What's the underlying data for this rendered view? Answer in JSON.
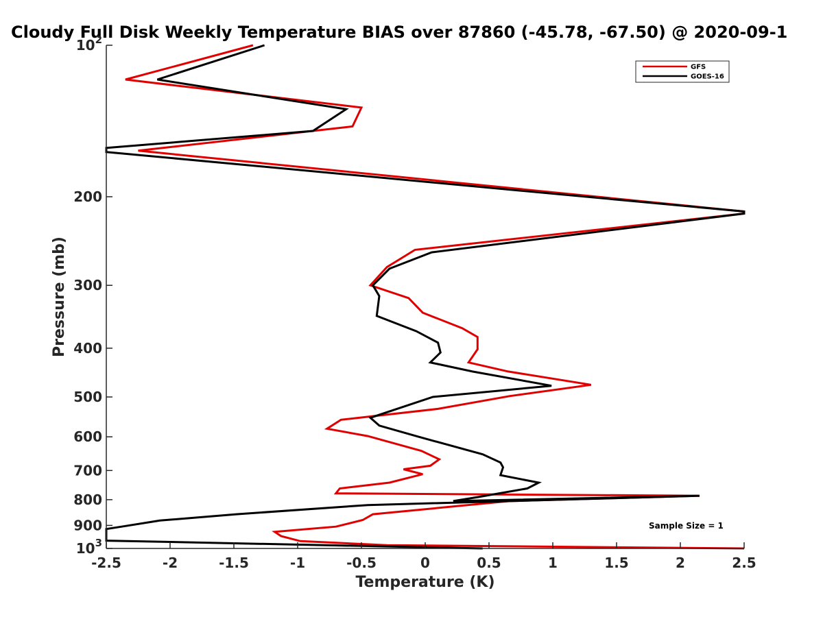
{
  "chart_data": {
    "type": "line",
    "title": "Cloudy Full Disk Weekly Temperature BIAS over 87860 (-45.78, -67.50) @ 2020-09-1",
    "xlabel": "Temperature (K)",
    "ylabel": "Pressure (mb)",
    "xlim": [
      -2.5,
      2.5
    ],
    "ylim": [
      1000,
      100
    ],
    "yscale": "log",
    "y_reversed": true,
    "x_ticks": [
      "-2.5",
      "-2",
      "-1.5",
      "-1",
      "-0.5",
      "0",
      "0.5",
      "1",
      "1.5",
      "2",
      "2.5"
    ],
    "y_ticks": [
      {
        "value": 100,
        "base": "10",
        "exp": "2"
      },
      {
        "value": 200,
        "label": "200"
      },
      {
        "value": 300,
        "label": "300"
      },
      {
        "value": 400,
        "label": "400"
      },
      {
        "value": 500,
        "label": "500"
      },
      {
        "value": 600,
        "label": "600"
      },
      {
        "value": 700,
        "label": "700"
      },
      {
        "value": 800,
        "label": "800"
      },
      {
        "value": 900,
        "label": "900"
      },
      {
        "value": 1000,
        "base": "10",
        "exp": "3"
      }
    ],
    "legend_position": "top-right",
    "grid": false,
    "annotation": "Sample Size = 1",
    "series": [
      {
        "name": "GFS",
        "color": "#e00000",
        "points": [
          [
            -1.35,
            100
          ],
          [
            -2.35,
            117
          ],
          [
            -0.5,
            133
          ],
          [
            -0.57,
            145
          ],
          [
            -2.25,
            162
          ],
          [
            2.5,
            214
          ],
          [
            2.5,
            216
          ],
          [
            -0.08,
            255
          ],
          [
            -0.3,
            276
          ],
          [
            -0.43,
            300
          ],
          [
            -0.13,
            318
          ],
          [
            -0.02,
            340
          ],
          [
            0.29,
            365
          ],
          [
            0.41,
            380
          ],
          [
            0.41,
            402
          ],
          [
            0.34,
            427
          ],
          [
            0.65,
            445
          ],
          [
            1.3,
            473
          ],
          [
            0.66,
            498
          ],
          [
            0.1,
            528
          ],
          [
            -0.66,
            555
          ],
          [
            -0.77,
            578
          ],
          [
            -0.45,
            598
          ],
          [
            -0.03,
            640
          ],
          [
            0.11,
            665
          ],
          [
            0.04,
            685
          ],
          [
            -0.17,
            696
          ],
          [
            -0.02,
            712
          ],
          [
            -0.28,
            740
          ],
          [
            -0.67,
            760
          ],
          [
            -0.7,
            777
          ],
          [
            2.15,
            786
          ],
          [
            0.66,
            805
          ],
          [
            -0.41,
            855
          ],
          [
            -0.49,
            878
          ],
          [
            -0.7,
            905
          ],
          [
            -1.18,
            927
          ],
          [
            -1.13,
            945
          ],
          [
            -0.98,
            967
          ],
          [
            -0.3,
            985
          ],
          [
            2.5,
            1000
          ]
        ]
      },
      {
        "name": "GOES-16",
        "color": "#000000",
        "points": [
          [
            -1.26,
            100
          ],
          [
            -2.1,
            117
          ],
          [
            -0.62,
            134
          ],
          [
            -0.88,
            148
          ],
          [
            -2.5,
            160
          ],
          [
            -2.5,
            163
          ],
          [
            2.5,
            214
          ],
          [
            2.5,
            216
          ],
          [
            0.05,
            258
          ],
          [
            -0.28,
            278
          ],
          [
            -0.41,
            300
          ],
          [
            -0.36,
            315
          ],
          [
            -0.38,
            345
          ],
          [
            -0.07,
            370
          ],
          [
            0.1,
            390
          ],
          [
            0.12,
            408
          ],
          [
            0.04,
            427
          ],
          [
            0.37,
            445
          ],
          [
            0.99,
            475
          ],
          [
            0.06,
            500
          ],
          [
            -0.43,
            550
          ],
          [
            -0.36,
            570
          ],
          [
            -0.05,
            600
          ],
          [
            0.45,
            650
          ],
          [
            0.59,
            675
          ],
          [
            0.61,
            690
          ],
          [
            0.59,
            715
          ],
          [
            0.89,
            740
          ],
          [
            0.8,
            760
          ],
          [
            0.42,
            790
          ],
          [
            0.22,
            805
          ],
          [
            2.15,
            786
          ],
          [
            -0.45,
            820
          ],
          [
            -1.48,
            855
          ],
          [
            -2.08,
            880
          ],
          [
            -2.38,
            905
          ],
          [
            -2.5,
            915
          ],
          [
            -2.5,
            965
          ],
          [
            0.45,
            1000
          ]
        ]
      }
    ]
  }
}
